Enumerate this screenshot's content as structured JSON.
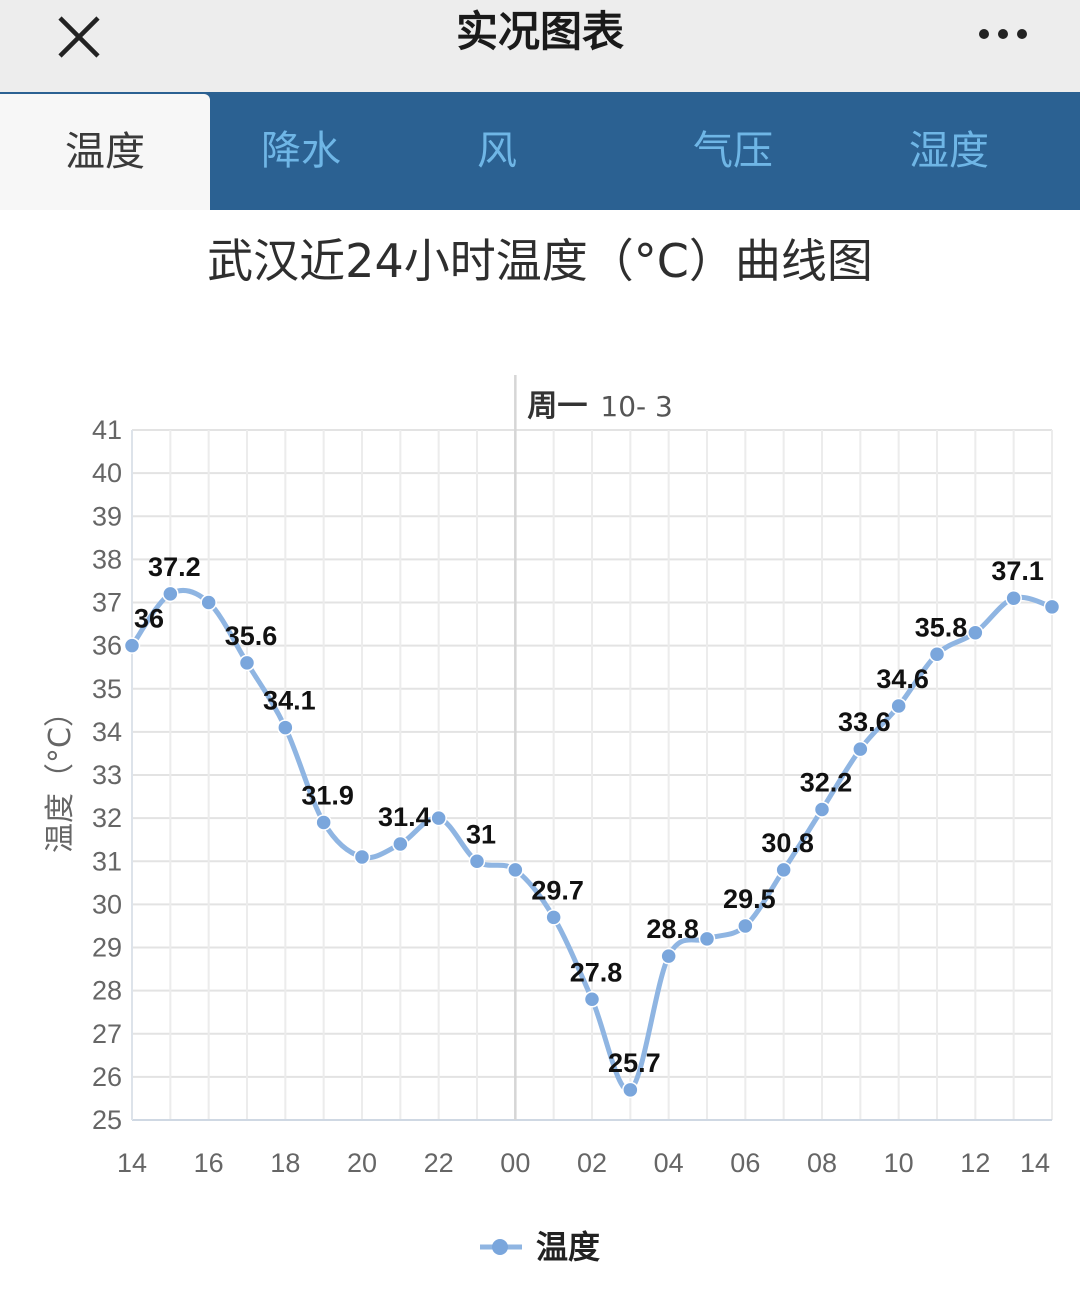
{
  "header": {
    "title": "实况图表",
    "close_icon": "close-icon",
    "more_icon": "more-dots-icon"
  },
  "tabs": [
    {
      "label": "温度",
      "active": true
    },
    {
      "label": "降水",
      "active": false
    },
    {
      "label": "风",
      "active": false
    },
    {
      "label": "气压",
      "active": false
    },
    {
      "label": "湿度",
      "active": false
    }
  ],
  "colors": {
    "header_bg": "#ededed",
    "tabbar_bg": "#2b6192",
    "tab_inactive_text": "#6fb6e6",
    "series_line": "#8fb5e2",
    "series_point": "#7aa6dc",
    "grid": "#e3e3e3"
  },
  "chart_data": {
    "type": "line",
    "title": "武汉近24小时温度（°C）曲线图",
    "ylabel": "温度（°C）",
    "xlabel": "",
    "ylim": [
      25,
      41
    ],
    "yticks": [
      25,
      26,
      27,
      28,
      29,
      30,
      31,
      32,
      33,
      34,
      35,
      36,
      37,
      38,
      39,
      40,
      41
    ],
    "x_hours": [
      14,
      15,
      16,
      17,
      18,
      19,
      20,
      21,
      22,
      23,
      24,
      25,
      26,
      27,
      28,
      29,
      30,
      31,
      32,
      33,
      34,
      35,
      36,
      37,
      38
    ],
    "xticks": [
      {
        "hour": 14,
        "label": "14"
      },
      {
        "hour": 16,
        "label": "16"
      },
      {
        "hour": 18,
        "label": "18"
      },
      {
        "hour": 20,
        "label": "20"
      },
      {
        "hour": 22,
        "label": "22"
      },
      {
        "hour": 24,
        "label": "00"
      },
      {
        "hour": 26,
        "label": "02"
      },
      {
        "hour": 28,
        "label": "04"
      },
      {
        "hour": 30,
        "label": "06"
      },
      {
        "hour": 32,
        "label": "08"
      },
      {
        "hour": 34,
        "label": "10"
      },
      {
        "hour": 36,
        "label": "12"
      },
      {
        "hour": 38,
        "label": "14"
      }
    ],
    "date_marker": {
      "hour": 24,
      "weekday": "周一",
      "date": "10- 3"
    },
    "series": [
      {
        "name": "温度",
        "values": [
          36,
          37.2,
          37.0,
          35.6,
          34.1,
          31.9,
          31.1,
          31.4,
          32.0,
          31.0,
          30.8,
          29.7,
          27.8,
          25.7,
          28.8,
          29.2,
          29.5,
          30.8,
          32.2,
          33.6,
          34.6,
          35.8,
          36.3,
          37.1,
          36.9
        ],
        "labels": [
          "36",
          "37.2",
          "",
          "35.6",
          "34.1",
          "31.9",
          "",
          "31.4",
          "",
          "31",
          "",
          "29.7",
          "27.8",
          "25.7",
          "28.8",
          "",
          "29.5",
          "30.8",
          "32.2",
          "33.6",
          "34.6",
          "35.8",
          "",
          "37.1",
          ""
        ]
      }
    ],
    "grid": true,
    "legend": "bottom-center"
  }
}
